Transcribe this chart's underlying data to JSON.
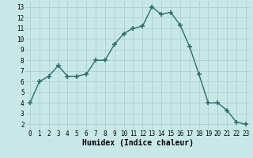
{
  "x": [
    0,
    1,
    2,
    3,
    4,
    5,
    6,
    7,
    8,
    9,
    10,
    11,
    12,
    13,
    14,
    15,
    16,
    17,
    18,
    19,
    20,
    21,
    22,
    23
  ],
  "y": [
    4,
    6,
    6.5,
    7.5,
    6.5,
    6.5,
    6.7,
    8,
    8,
    9.5,
    10.5,
    11,
    11.2,
    13,
    12.3,
    12.5,
    11.3,
    9.3,
    6.7,
    4,
    4,
    3.3,
    2.2,
    2
  ],
  "line_color": "#2d6e6e",
  "marker": "+",
  "marker_size": 4,
  "bg_color": "#c8e8e8",
  "grid_color": "#aacccc",
  "xlabel": "Humidex (Indice chaleur)",
  "xlim": [
    -0.5,
    23.5
  ],
  "ylim": [
    1.5,
    13.5
  ],
  "yticks": [
    2,
    3,
    4,
    5,
    6,
    7,
    8,
    9,
    10,
    11,
    12,
    13
  ],
  "xticks": [
    0,
    1,
    2,
    3,
    4,
    5,
    6,
    7,
    8,
    9,
    10,
    11,
    12,
    13,
    14,
    15,
    16,
    17,
    18,
    19,
    20,
    21,
    22,
    23
  ],
  "tick_fontsize": 5.5,
  "xlabel_fontsize": 7,
  "line_width": 1.0,
  "marker_thickness": 1.2
}
